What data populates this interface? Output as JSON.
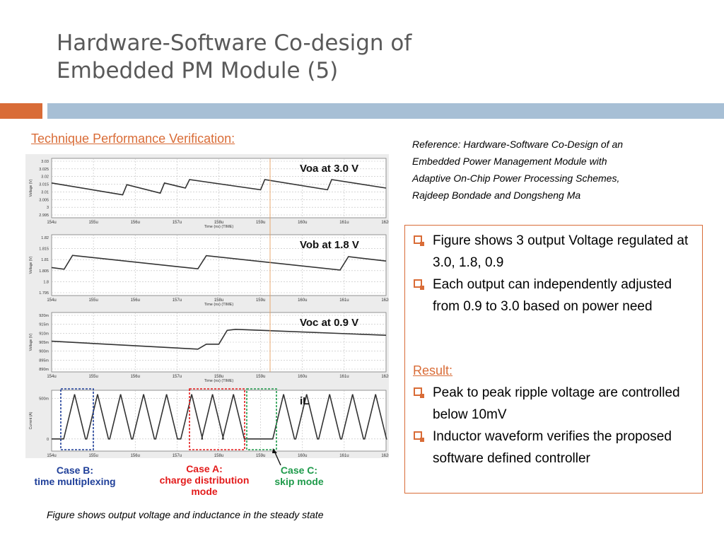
{
  "title": {
    "line1": "Hardware-Software Co-design of",
    "line2": "Embedded PM Module (5)"
  },
  "subtitle": "Technique Performance Verification:",
  "reference": [
    "Reference: Hardware-Software Co-Design of an",
    "Embedded Power Management Module with",
    "Adaptive On-Chip Power Processing Schemes,",
    "Rajdeep Bondade and Dongsheng Ma"
  ],
  "caption": "Figure shows output voltage and inductance in the steady state",
  "box": {
    "bullets_top": [
      "Figure shows 3 output Voltage regulated at 3.0, 1.8, 0.9",
      "Each output can independently adjusted from 0.9 to 3.0 based on power need"
    ],
    "result_label": "Result:",
    "bullets_bottom": [
      "Peak to peak ripple voltage are controlled below 10mV",
      "Inductor waveform verifies the proposed software defined controller"
    ]
  },
  "colors": {
    "accent": "#d96c37",
    "band": "#a7bfd5",
    "title": "#595959",
    "wave": "#333333",
    "case_b": "#1f3f99",
    "case_a": "#e31b1b",
    "case_c": "#1e9a4a"
  },
  "chart_data": [
    {
      "type": "line",
      "label": "Voa at 3.0 V",
      "ylabel": "Voltage (V)",
      "xlabel": "Time (ns) (TIME)",
      "x_ticks": [
        "154u",
        "155u",
        "156u",
        "157u",
        "158u",
        "159u",
        "160u",
        "161u",
        "162u"
      ],
      "y_ticks": [
        "3.03",
        "3.025",
        "3.02",
        "3.015",
        "3.01",
        "3.005",
        "3",
        "2.995"
      ],
      "ylim": [
        2.995,
        3.03
      ],
      "x": [
        154.0,
        155.7,
        155.8,
        156.6,
        156.7,
        157.2,
        157.3,
        159.0,
        159.1,
        160.6,
        160.7,
        162.0
      ],
      "y": [
        3.0155,
        3.0085,
        3.0145,
        3.0095,
        3.0155,
        3.0125,
        3.0175,
        3.0115,
        3.0175,
        3.0115,
        3.0175,
        3.0125
      ]
    },
    {
      "type": "line",
      "label": "Vob at 1.8 V",
      "ylabel": "Voltage (V)",
      "xlabel": "Time (ns) (TIME)",
      "x_ticks": [
        "154u",
        "155u",
        "156u",
        "157u",
        "158u",
        "159u",
        "160u",
        "161u",
        "162u"
      ],
      "y_ticks": [
        "1.82",
        "1.815",
        "1.81",
        "1.805",
        "1.8",
        "1.795"
      ],
      "ylim": [
        1.795,
        1.82
      ],
      "x": [
        154.0,
        154.3,
        154.5,
        157.5,
        157.7,
        160.9,
        161.1,
        162.0
      ],
      "y": [
        1.8065,
        1.8058,
        1.8115,
        1.806,
        1.8114,
        1.8055,
        1.811,
        1.8092
      ]
    },
    {
      "type": "line",
      "label": "Voc at 0.9 V",
      "ylabel": "Voltage (V)",
      "xlabel": "Time (ns) (TIME)",
      "x_ticks": [
        "154u",
        "155u",
        "156u",
        "157u",
        "158u",
        "159u",
        "160u",
        "161u",
        "162u"
      ],
      "y_ticks": [
        "920m",
        "915m",
        "910m",
        "905m",
        "900m",
        "895m",
        "890m"
      ],
      "ylim": [
        0.89,
        0.92
      ],
      "x": [
        154.0,
        157.5,
        157.7,
        158.0,
        158.2,
        158.4,
        162.0
      ],
      "y": [
        0.9055,
        0.9015,
        0.904,
        0.904,
        0.911,
        0.9115,
        0.9085
      ]
    },
    {
      "type": "line",
      "label": "iL",
      "ylabel": "Current (A)",
      "xlabel": "",
      "x_ticks": [
        "154u",
        "155u",
        "156u",
        "157u",
        "158u",
        "159u",
        "160u",
        "161u",
        "162u"
      ],
      "y_ticks": [
        "500m",
        "0"
      ],
      "ylim": [
        -0.15,
        0.6
      ],
      "peaks": [
        154.55,
        155.1,
        155.65,
        156.2,
        156.75,
        157.35,
        157.85,
        158.35,
        159.55,
        160.1,
        160.65,
        161.2,
        161.75
      ],
      "peak_value": 0.55,
      "base_value": 0.0
    }
  ],
  "annotations": {
    "case_b": [
      "Case B:",
      "time multiplexing"
    ],
    "case_a": [
      "Case A:",
      "charge distribution",
      "mode"
    ],
    "case_c": [
      "Case C:",
      "skip mode"
    ]
  }
}
